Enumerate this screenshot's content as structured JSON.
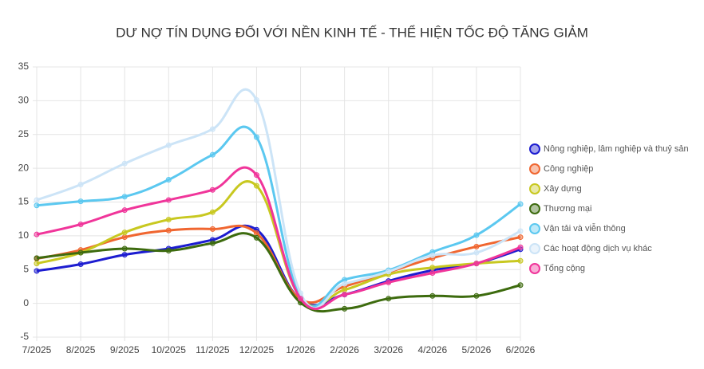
{
  "chart_data": {
    "type": "line",
    "title": "DƯ NỢ TÍN DỤNG ĐỐI VỚI NỀN KINH TẾ - THỂ HIỆN TỐC ĐỘ TĂNG GIẢM",
    "categories": [
      "7/2025",
      "8/2025",
      "9/2025",
      "10/2025",
      "11/2025",
      "12/2025",
      "1/2026",
      "2/2026",
      "3/2026",
      "4/2026",
      "5/2026",
      "6/2026"
    ],
    "series": [
      {
        "name": "Nông nghiệp, lâm nghiệp và thuỷ sản",
        "color": "#1c1cd0",
        "values": [
          4.8,
          5.8,
          7.2,
          8.1,
          9.4,
          10.9,
          0.5,
          1.3,
          3.3,
          4.9,
          5.9,
          8.0
        ]
      },
      {
        "name": "Công nghiệp",
        "color": "#f06630",
        "values": [
          6.6,
          7.9,
          9.8,
          10.8,
          11.0,
          10.4,
          0.6,
          2.5,
          4.6,
          6.7,
          8.4,
          9.8
        ]
      },
      {
        "name": "Xây dựng",
        "color": "#c8c820",
        "values": [
          5.9,
          7.5,
          10.5,
          12.4,
          13.5,
          17.4,
          0.8,
          2.0,
          4.3,
          5.3,
          5.9,
          6.3
        ]
      },
      {
        "name": "Thương mại",
        "color": "#3d6b0e",
        "values": [
          6.7,
          7.5,
          8.1,
          7.8,
          8.9,
          9.7,
          0.1,
          -0.8,
          0.7,
          1.1,
          1.1,
          2.7
        ]
      },
      {
        "name": "Vận tải và viễn thông",
        "color": "#5bc8f0",
        "values": [
          14.5,
          15.1,
          15.8,
          18.3,
          22.0,
          24.6,
          1.0,
          3.5,
          4.9,
          7.6,
          10.1,
          14.7
        ]
      },
      {
        "name": "Các hoạt động dịch vụ khác",
        "color": "#cce4f7",
        "values": [
          15.3,
          17.6,
          20.7,
          23.4,
          25.8,
          30.1,
          1.5,
          2.9,
          4.7,
          7.1,
          7.5,
          10.7
        ]
      },
      {
        "name": "Tổng cộng",
        "color": "#f0359a",
        "values": [
          10.2,
          11.7,
          13.8,
          15.3,
          16.8,
          19.0,
          0.7,
          1.3,
          3.1,
          4.5,
          5.9,
          8.3
        ]
      }
    ],
    "ylim": [
      -5,
      35
    ],
    "yticks": [
      -5,
      0,
      5,
      10,
      15,
      20,
      25,
      30,
      35
    ],
    "grid": true,
    "legend": "right"
  }
}
